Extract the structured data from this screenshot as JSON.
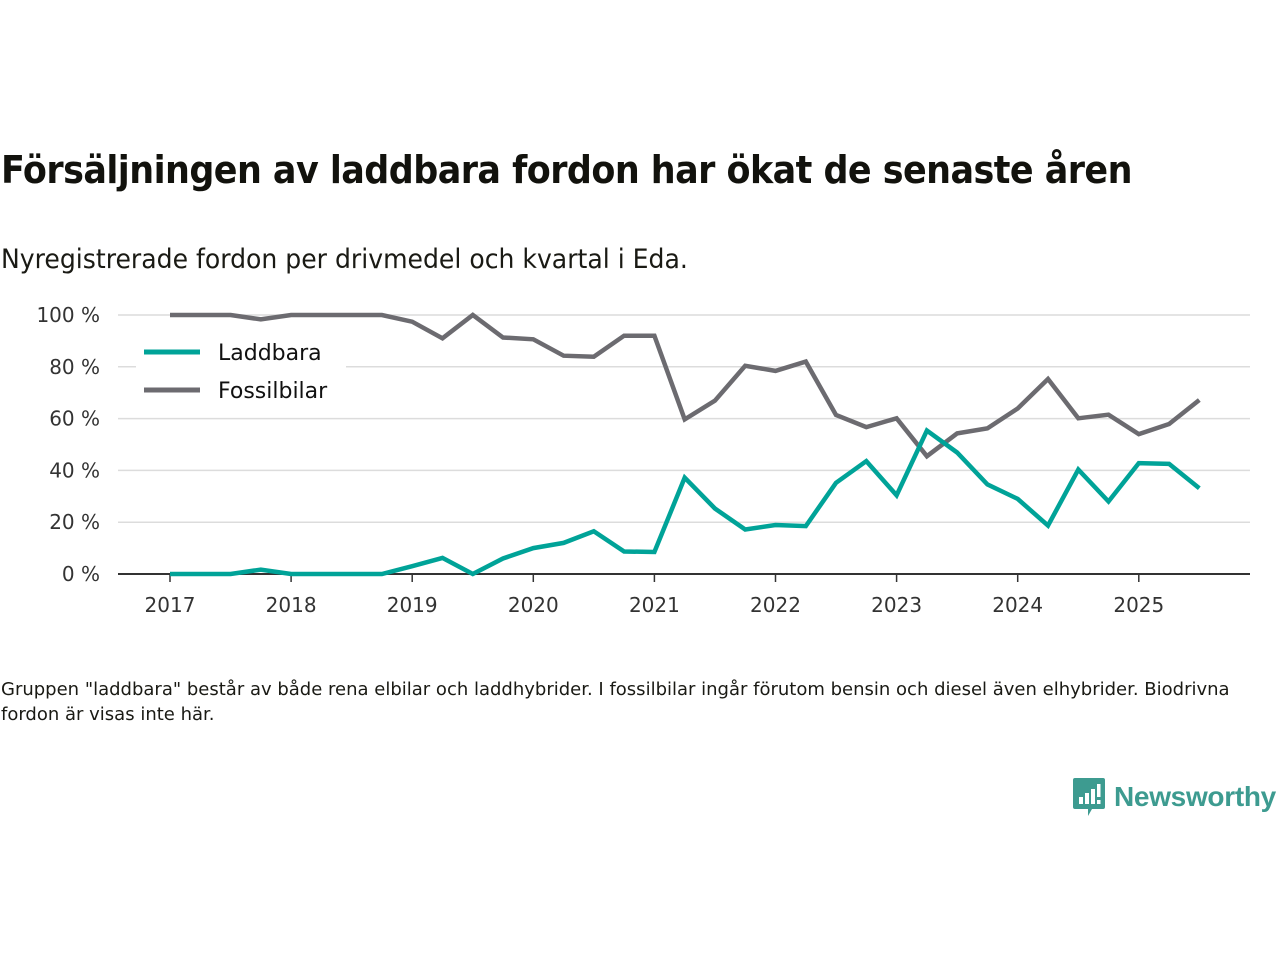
{
  "header": {
    "title": "Försäljningen av laddbara fordon har ökat de senaste åren",
    "subtitle": "Nyregistrerade fordon per drivmedel och kvartal i Eda."
  },
  "footnote": "Gruppen \"laddbara\" består av både rena elbilar och laddhybrider. I fossilbilar ingår förutom bensin och diesel även elhybrider. Biodrivna fordon är visas inte här.",
  "brand": {
    "name": "Newsworthy",
    "icon": "bar-chart-speech-bubble-icon",
    "color": "#3d9b90"
  },
  "chart_data": {
    "type": "line",
    "title": "Försäljningen av laddbara fordon har ökat de senaste åren",
    "subtitle": "Nyregistrerade fordon per drivmedel och kvartal i Eda.",
    "xlabel": "",
    "ylabel": "",
    "x": [
      "2017Q1",
      "2017Q2",
      "2017Q3",
      "2017Q4",
      "2018Q1",
      "2018Q2",
      "2018Q3",
      "2018Q4",
      "2019Q1",
      "2019Q2",
      "2019Q3",
      "2019Q4",
      "2020Q1",
      "2020Q2",
      "2020Q3",
      "2020Q4",
      "2021Q1",
      "2021Q2",
      "2021Q3",
      "2021Q4",
      "2022Q1",
      "2022Q2",
      "2022Q3",
      "2022Q4",
      "2023Q1",
      "2023Q2",
      "2023Q3",
      "2023Q4",
      "2024Q1",
      "2024Q2",
      "2024Q3",
      "2024Q4",
      "2025Q1",
      "2025Q2",
      "2025Q3"
    ],
    "x_start_year": 2017,
    "x_range": [
      2016.6,
      2026.0
    ],
    "x_ticks": [
      "2017",
      "2018",
      "2019",
      "2020",
      "2021",
      "2022",
      "2023",
      "2024",
      "2025"
    ],
    "ylim": [
      0,
      100
    ],
    "y_ticks": [
      0,
      20,
      40,
      60,
      80,
      100
    ],
    "y_tick_labels": [
      "0 %",
      "20 %",
      "40 %",
      "60 %",
      "80 %",
      "100 %"
    ],
    "grid": true,
    "legend_position": "top-left",
    "series": [
      {
        "name": "Laddbara",
        "color": "#00a398",
        "values": [
          0,
          0,
          0,
          1.7,
          0,
          0,
          0,
          0,
          3.0,
          6.2,
          0,
          6.0,
          10.0,
          12.0,
          16.5,
          8.7,
          8.5,
          37.2,
          25.3,
          17.2,
          18.9,
          18.5,
          35.2,
          43.6,
          30.4,
          55.4,
          46.9,
          34.6,
          29.0,
          18.7,
          40.3,
          28.0,
          42.8,
          42.5,
          33.1
        ]
      },
      {
        "name": "Fossilbilar",
        "color": "#6c6b70",
        "values": [
          100,
          100,
          100,
          98.3,
          100,
          100,
          100,
          100,
          97.4,
          91.0,
          100,
          91.3,
          90.6,
          84.3,
          83.9,
          92.0,
          92.0,
          59.7,
          66.9,
          80.4,
          78.4,
          82.0,
          61.4,
          56.7,
          60.1,
          45.5,
          54.3,
          56.2,
          63.9,
          75.3,
          60.1,
          61.5,
          54.0,
          57.9,
          67.2
        ]
      }
    ]
  }
}
